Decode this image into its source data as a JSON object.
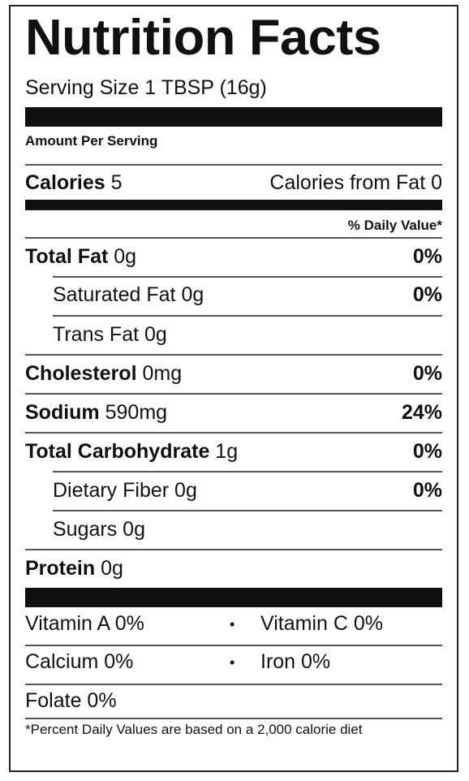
{
  "title": "Nutrition Facts",
  "serving_size": "Serving Size 1 TBSP (16g)",
  "amount_per_serving": "Amount Per Serving",
  "calories": {
    "label": "Calories",
    "value": "5"
  },
  "calories_from_fat": {
    "label": "Calories from Fat",
    "value": "0"
  },
  "daily_value_header": "% Daily Value*",
  "nutrients": [
    {
      "name": "Total Fat",
      "amount": "0g",
      "dv": "0%"
    },
    {
      "name": "Saturated Fat",
      "amount": "0g",
      "dv": "0%"
    },
    {
      "name": "Trans Fat",
      "amount": "0g",
      "dv": ""
    },
    {
      "name": "Cholesterol",
      "amount": "0mg",
      "dv": "0%"
    },
    {
      "name": "Sodium",
      "amount": "590mg",
      "dv": "24%"
    },
    {
      "name": "Total Carbohydrate",
      "amount": "1g",
      "dv": "0%"
    },
    {
      "name": "Dietary Fiber",
      "amount": "0g",
      "dv": "0%"
    },
    {
      "name": "Sugars",
      "amount": "0g",
      "dv": ""
    },
    {
      "name": "Protein",
      "amount": "0g",
      "dv": ""
    }
  ],
  "vitamins": {
    "vitamin_a": "Vitamin A 0%",
    "vitamin_c": "Vitamin C 0%",
    "calcium": "Calcium 0%",
    "iron": "Iron 0%",
    "folate": "Folate 0%",
    "bullet": "•"
  },
  "footnote": "*Percent Daily Values are based on a 2,000 calorie diet"
}
